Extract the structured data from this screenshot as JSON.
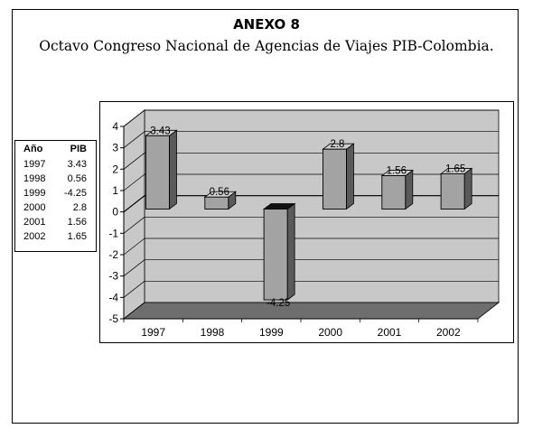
{
  "header": {
    "title": "ANEXO 8",
    "subtitle": "Octavo Congreso Nacional de Agencias de Viajes PIB-Colombia."
  },
  "table": {
    "headers": [
      "Año",
      "PIB"
    ],
    "rows": [
      [
        "1997",
        "3.43"
      ],
      [
        "1998",
        "0.56"
      ],
      [
        "1999",
        "-4.25"
      ],
      [
        "2000",
        "2.8"
      ],
      [
        "2001",
        "1.56"
      ],
      [
        "2002",
        "1.65"
      ]
    ]
  },
  "chart_data": {
    "type": "bar",
    "categories": [
      "1997",
      "1998",
      "1999",
      "2000",
      "2001",
      "2002"
    ],
    "values": [
      3.43,
      0.56,
      -4.25,
      2.8,
      1.56,
      1.65
    ],
    "data_labels": [
      "3.43",
      "0.56",
      "-4.25",
      "2.8",
      "1.56",
      "1.65"
    ],
    "y_ticks": [
      4,
      3,
      2,
      1,
      0,
      -1,
      -2,
      -3,
      -4,
      -5
    ],
    "ylim": [
      -5,
      4
    ],
    "grid": true,
    "three_d": true,
    "colors": {
      "bar_front": "#a3a3a3",
      "bar_side": "#5a5a5a",
      "bar_top": "#cfcfcf",
      "wall": "#c8c8c8",
      "floor": "#6e6e6e"
    }
  }
}
